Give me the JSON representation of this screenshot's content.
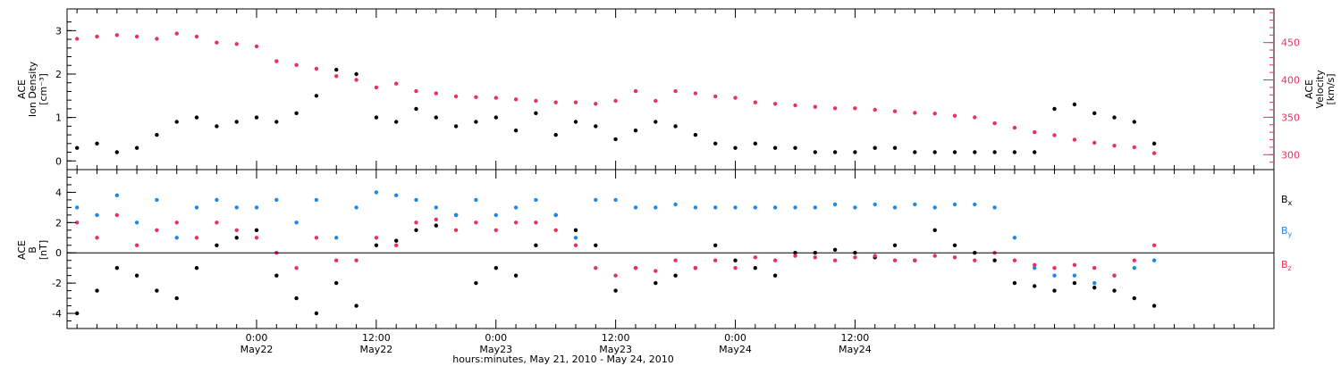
{
  "colors": {
    "black": "#000000",
    "pink": "#E8315F",
    "blue": "#1E88E5"
  },
  "chart_data": [
    {
      "type": "scatter",
      "panel": "top",
      "left_axis": {
        "label_line1": "ACE",
        "label_line2": "Ion Density",
        "label_line3": "[cm⁻³]",
        "ylim": [
          -0.2,
          3.5
        ],
        "ticks": [
          0,
          1,
          2,
          3
        ],
        "tick_labels": [
          "0",
          "1",
          "2",
          "3"
        ],
        "color": "#000000"
      },
      "right_axis": {
        "label_line1": "ACE",
        "label_line2": "Velocity",
        "label_line3": "[km/s]",
        "ylim": [
          280,
          495
        ],
        "ticks": [
          300,
          350,
          400,
          450
        ],
        "tick_labels": [
          "300",
          "350",
          "400",
          "450"
        ],
        "color": "#E8315F"
      },
      "series": [
        {
          "axis": "left",
          "color": "#000000",
          "x": [
            -18,
            -16,
            -14,
            -12,
            -10,
            -8,
            -6,
            -4,
            -2,
            0,
            2,
            4,
            6,
            8,
            10,
            12,
            14,
            16,
            18,
            20,
            22,
            24,
            26,
            28,
            30,
            32,
            34,
            36,
            38,
            40,
            42,
            44,
            46,
            48,
            50,
            52,
            54,
            56,
            58,
            60,
            62,
            64,
            66,
            68,
            70,
            72,
            74,
            76,
            78,
            80,
            82,
            84,
            86,
            88,
            90
          ],
          "y": [
            0.3,
            0.4,
            0.2,
            0.3,
            0.6,
            0.9,
            1.0,
            0.8,
            0.9,
            1.0,
            0.9,
            1.1,
            1.5,
            2.1,
            2.0,
            1.0,
            0.9,
            1.2,
            1.0,
            0.8,
            0.9,
            1.0,
            0.7,
            1.1,
            0.6,
            0.9,
            0.8,
            0.5,
            0.7,
            0.9,
            0.8,
            0.6,
            0.4,
            0.3,
            0.4,
            0.3,
            0.3,
            0.2,
            0.2,
            0.2,
            0.3,
            0.3,
            0.2,
            0.2,
            0.2,
            0.2,
            0.2,
            0.2,
            0.2,
            1.2,
            1.3,
            1.1,
            1.0,
            0.9,
            0.4
          ]
        },
        {
          "axis": "right",
          "color": "#E8315F",
          "x": [
            -18,
            -16,
            -14,
            -12,
            -10,
            -8,
            -6,
            -4,
            -2,
            0,
            2,
            4,
            6,
            8,
            10,
            12,
            14,
            16,
            18,
            20,
            22,
            24,
            26,
            28,
            30,
            32,
            34,
            36,
            38,
            40,
            42,
            44,
            46,
            48,
            50,
            52,
            54,
            56,
            58,
            60,
            62,
            64,
            66,
            68,
            70,
            72,
            74,
            76,
            78,
            80,
            82,
            84,
            86,
            88,
            90
          ],
          "y": [
            455,
            458,
            460,
            458,
            455,
            462,
            458,
            450,
            448,
            445,
            425,
            420,
            415,
            405,
            400,
            390,
            395,
            385,
            382,
            378,
            377,
            376,
            374,
            372,
            370,
            370,
            368,
            372,
            385,
            372,
            385,
            382,
            378,
            376,
            370,
            368,
            366,
            364,
            362,
            362,
            360,
            358,
            356,
            355,
            352,
            350,
            342,
            336,
            330,
            326,
            320,
            316,
            312,
            310,
            302
          ]
        }
      ],
      "xlim": [
        -19,
        102
      ]
    },
    {
      "type": "scatter",
      "panel": "bottom",
      "left_axis": {
        "label_line1": "ACE",
        "label_line2": "B",
        "label_line3": "[nT]",
        "ylim": [
          -5,
          5.5
        ],
        "ticks": [
          -4,
          -2,
          0,
          2,
          4
        ],
        "tick_labels": [
          "-4",
          "-2",
          "0",
          "2",
          "4"
        ]
      },
      "legend": {
        "bx_letter": "B",
        "bx_sub": "x",
        "by_letter": "B",
        "by_sub": "y",
        "bz_letter": "B",
        "bz_sub": "z",
        "placement": "right"
      },
      "series": [
        {
          "name": "Bx",
          "color": "#000000",
          "x": [
            -18,
            -16,
            -14,
            -12,
            -10,
            -8,
            -6,
            -4,
            -2,
            0,
            2,
            4,
            6,
            8,
            10,
            12,
            14,
            16,
            18,
            20,
            22,
            24,
            26,
            28,
            30,
            32,
            34,
            36,
            38,
            40,
            42,
            44,
            46,
            48,
            50,
            52,
            54,
            56,
            58,
            60,
            62,
            64,
            66,
            68,
            70,
            72,
            74,
            76,
            78,
            80,
            82,
            84,
            86,
            88,
            90
          ],
          "y": [
            -4.0,
            -2.5,
            -1.0,
            -1.5,
            -2.5,
            -3.0,
            -1.0,
            0.5,
            1.0,
            1.5,
            -1.5,
            -3.0,
            -4.0,
            -2.0,
            -3.5,
            0.5,
            0.8,
            1.5,
            1.8,
            2.5,
            -2.0,
            -1.0,
            -1.5,
            0.5,
            2.5,
            1.5,
            0.5,
            -2.5,
            -1.0,
            -2.0,
            -1.5,
            -1.0,
            0.5,
            -0.5,
            -1.0,
            -1.5,
            0.0,
            0.0,
            0.2,
            0.0,
            -0.3,
            0.5,
            -0.5,
            1.5,
            0.5,
            0.0,
            -0.5,
            -2.0,
            -2.2,
            -2.5,
            -2.0,
            -2.3,
            -2.5,
            -3.0,
            -3.5
          ]
        },
        {
          "name": "By",
          "color": "#1E88E5",
          "x": [
            -18,
            -16,
            -14,
            -12,
            -10,
            -8,
            -6,
            -4,
            -2,
            0,
            2,
            4,
            6,
            8,
            10,
            12,
            14,
            16,
            18,
            20,
            22,
            24,
            26,
            28,
            30,
            32,
            34,
            36,
            38,
            40,
            42,
            44,
            46,
            48,
            50,
            52,
            54,
            56,
            58,
            60,
            62,
            64,
            66,
            68,
            70,
            72,
            74,
            76,
            78,
            80,
            82,
            84,
            86,
            88,
            90
          ],
          "y": [
            3.0,
            2.5,
            3.8,
            2.0,
            3.5,
            1.0,
            3.0,
            3.5,
            3.0,
            3.0,
            3.5,
            2.0,
            3.5,
            1.0,
            3.0,
            4.0,
            3.8,
            3.5,
            3.0,
            2.5,
            3.5,
            2.5,
            3.0,
            3.5,
            2.5,
            1.0,
            3.5,
            3.5,
            3.0,
            3.0,
            3.2,
            3.0,
            3.0,
            3.0,
            3.0,
            3.0,
            3.0,
            3.0,
            3.2,
            3.0,
            3.2,
            3.0,
            3.2,
            3.0,
            3.2,
            3.2,
            3.0,
            1.0,
            -1.0,
            -1.5,
            -1.5,
            -2.0,
            -1.5,
            -1.0,
            -0.5
          ]
        },
        {
          "name": "Bz",
          "color": "#E8315F",
          "x": [
            -18,
            -16,
            -14,
            -12,
            -10,
            -8,
            -6,
            -4,
            -2,
            0,
            2,
            4,
            6,
            8,
            10,
            12,
            14,
            16,
            18,
            20,
            22,
            24,
            26,
            28,
            30,
            32,
            34,
            36,
            38,
            40,
            42,
            44,
            46,
            48,
            50,
            52,
            54,
            56,
            58,
            60,
            62,
            64,
            66,
            68,
            70,
            72,
            74,
            76,
            78,
            80,
            82,
            84,
            86,
            88,
            90
          ],
          "y": [
            2.0,
            1.0,
            2.5,
            0.5,
            1.5,
            2.0,
            1.0,
            2.0,
            1.5,
            1.0,
            0.0,
            -1.0,
            1.0,
            -0.5,
            -0.5,
            1.0,
            0.5,
            2.0,
            2.2,
            1.5,
            2.0,
            1.5,
            2.0,
            2.0,
            1.5,
            0.5,
            -1.0,
            -1.5,
            -1.0,
            -1.2,
            -0.5,
            -1.0,
            -0.5,
            -1.0,
            -0.3,
            -0.5,
            -0.2,
            -0.3,
            -0.5,
            -0.3,
            -0.2,
            -0.5,
            -0.5,
            -0.2,
            -0.3,
            -0.5,
            0.0,
            -0.5,
            -0.8,
            -1.0,
            -0.8,
            -1.0,
            -1.5,
            -0.5,
            0.5
          ]
        }
      ],
      "xlim": [
        -19,
        102
      ]
    }
  ],
  "x_axis": {
    "tick_hours": [
      0,
      12,
      24,
      36,
      48,
      60
    ],
    "tick_time_labels": [
      "0:00",
      "12:00",
      "0:00",
      "12:00",
      "0:00",
      "12:00"
    ],
    "tick_date_labels": [
      "May22",
      "May22",
      "May23",
      "May23",
      "May24",
      "May24"
    ],
    "title": "hours:minutes, May 21, 2010 - May 24, 2010"
  }
}
